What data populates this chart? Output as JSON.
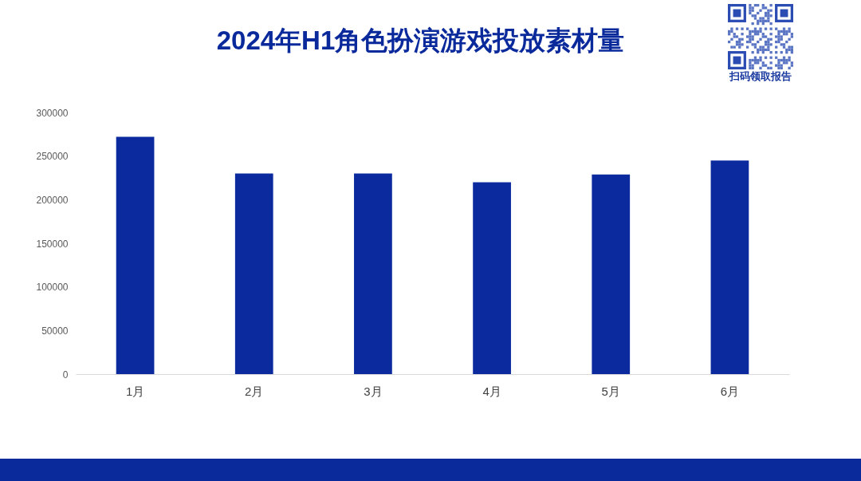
{
  "chart_data": {
    "type": "bar",
    "title": "2024年H1角色扮演游戏投放素材量",
    "categories": [
      "1月",
      "2月",
      "3月",
      "4月",
      "5月",
      "6月"
    ],
    "values": [
      272000,
      230000,
      230000,
      220000,
      229000,
      245000
    ],
    "color": "#0a2a9e",
    "ylim": [
      0,
      300000
    ],
    "yticks": [
      0,
      50000,
      100000,
      150000,
      200000,
      250000,
      300000
    ],
    "grid": false,
    "annotations": [
      "扫码领取报告"
    ]
  }
}
